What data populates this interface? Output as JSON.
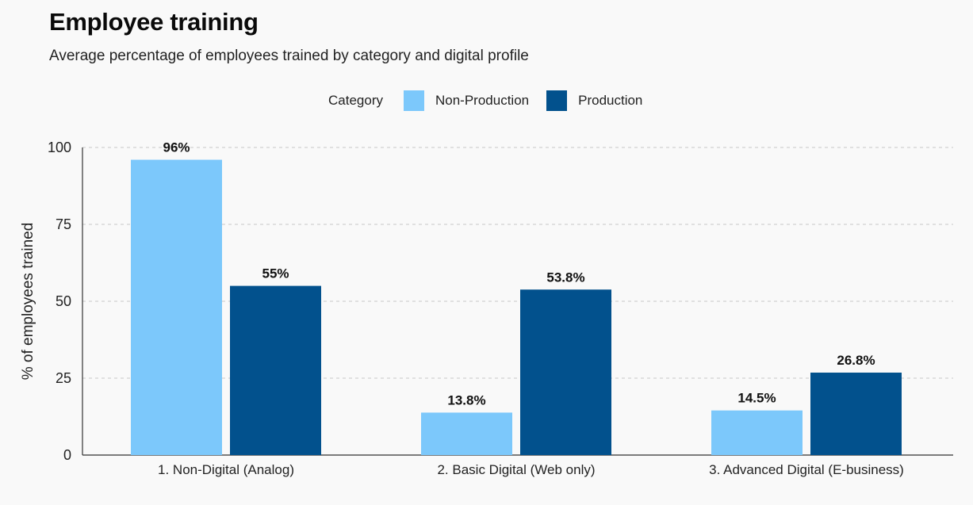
{
  "chart_data": {
    "type": "bar",
    "title": "Employee training",
    "subtitle": "Average percentage of employees trained by category and digital profile",
    "legend_title": "Category",
    "legend_position": "top-center",
    "ylabel": "% of employees trained",
    "xlabel": "",
    "ylim": [
      0,
      100
    ],
    "yticks": [
      0,
      25,
      50,
      75,
      100
    ],
    "grid": true,
    "categories": [
      "1. Non-Digital (Analog)",
      "2. Basic Digital (Web only)",
      "3. Advanced Digital (E-business)"
    ],
    "series": [
      {
        "name": "Non-Production",
        "color": "#7cc8fb",
        "values": [
          96,
          13.8,
          14.5
        ],
        "labels": [
          "96%",
          "13.8%",
          "14.5%"
        ]
      },
      {
        "name": "Production",
        "color": "#02518d",
        "values": [
          55,
          53.8,
          26.8
        ],
        "labels": [
          "55%",
          "53.8%",
          "26.8%"
        ]
      }
    ]
  }
}
